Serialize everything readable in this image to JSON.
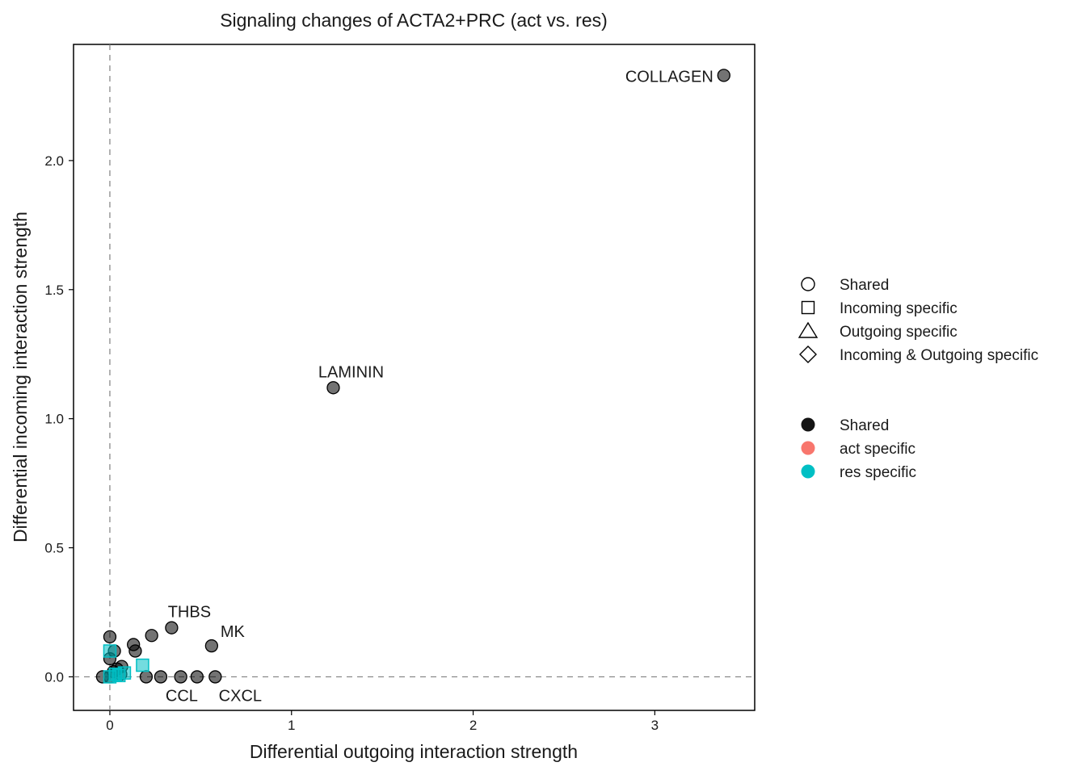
{
  "chart_data": {
    "type": "scatter",
    "title": "Signaling changes of ACTA2+PRC (act vs. res)",
    "xlabel": "Differential outgoing interaction strength",
    "ylabel": "Differential incoming interaction strength",
    "xlim": [
      -0.2,
      3.55
    ],
    "ylim": [
      -0.13,
      2.45
    ],
    "xticks": [
      0,
      1,
      2,
      3
    ],
    "yticks": [
      0.0,
      0.5,
      1.0,
      1.5,
      2.0
    ],
    "ytick_labels": [
      "0.0",
      "0.5",
      "1.0",
      "1.5",
      "2.0"
    ],
    "grid": false,
    "reference_lines": {
      "x": 0,
      "y": 0,
      "style": "dashed"
    },
    "colors": {
      "Shared": "#000000",
      "act specific": "#F8766D",
      "res specific": "#00BFC4"
    },
    "points": [
      {
        "x": 3.38,
        "y": 2.33,
        "shape": "circle",
        "group": "Shared",
        "label": "COLLAGEN"
      },
      {
        "x": 1.23,
        "y": 1.12,
        "shape": "circle",
        "group": "Shared",
        "label": "LAMININ"
      },
      {
        "x": 0.34,
        "y": 0.19,
        "shape": "circle",
        "group": "Shared",
        "label": "THBS"
      },
      {
        "x": 0.56,
        "y": 0.12,
        "shape": "circle",
        "group": "Shared",
        "label": "MK"
      },
      {
        "x": 0.2,
        "y": 0.0,
        "shape": "circle",
        "group": "Shared",
        "label": "CCL"
      },
      {
        "x": 0.58,
        "y": 0.0,
        "shape": "circle",
        "group": "Shared",
        "label": "CXCL"
      },
      {
        "x": 0.23,
        "y": 0.16,
        "shape": "circle",
        "group": "Shared",
        "label": ""
      },
      {
        "x": 0.0,
        "y": 0.155,
        "shape": "circle",
        "group": "Shared",
        "label": ""
      },
      {
        "x": 0.13,
        "y": 0.125,
        "shape": "circle",
        "group": "Shared",
        "label": ""
      },
      {
        "x": 0.14,
        "y": 0.1,
        "shape": "circle",
        "group": "Shared",
        "label": ""
      },
      {
        "x": 0.025,
        "y": 0.1,
        "shape": "circle",
        "group": "Shared",
        "label": ""
      },
      {
        "x": 0.0,
        "y": 0.07,
        "shape": "circle",
        "group": "Shared",
        "label": ""
      },
      {
        "x": 0.065,
        "y": 0.04,
        "shape": "circle",
        "group": "Shared",
        "label": ""
      },
      {
        "x": 0.04,
        "y": 0.03,
        "shape": "circle",
        "group": "Shared",
        "label": ""
      },
      {
        "x": 0.02,
        "y": 0.02,
        "shape": "circle",
        "group": "Shared",
        "label": ""
      },
      {
        "x": -0.04,
        "y": 0.0,
        "shape": "circle",
        "group": "Shared",
        "label": ""
      },
      {
        "x": 0.0,
        "y": 0.0,
        "shape": "circle",
        "group": "Shared",
        "label": ""
      },
      {
        "x": 0.06,
        "y": 0.01,
        "shape": "circle",
        "group": "Shared",
        "label": ""
      },
      {
        "x": 0.28,
        "y": 0.0,
        "shape": "circle",
        "group": "Shared",
        "label": ""
      },
      {
        "x": 0.39,
        "y": 0.0,
        "shape": "circle",
        "group": "Shared",
        "label": ""
      },
      {
        "x": 0.48,
        "y": 0.0,
        "shape": "circle",
        "group": "Shared",
        "label": ""
      },
      {
        "x": 0.0,
        "y": 0.1,
        "shape": "square",
        "group": "res specific",
        "label": ""
      },
      {
        "x": 0.18,
        "y": 0.045,
        "shape": "square",
        "group": "res specific",
        "label": ""
      },
      {
        "x": 0.08,
        "y": 0.015,
        "shape": "square",
        "group": "res specific",
        "label": ""
      },
      {
        "x": 0.03,
        "y": 0.01,
        "shape": "square",
        "group": "res specific",
        "label": ""
      },
      {
        "x": 0.0,
        "y": 0.0,
        "shape": "square",
        "group": "res specific",
        "label": ""
      },
      {
        "x": 0.05,
        "y": 0.005,
        "shape": "square",
        "group": "res specific",
        "label": ""
      }
    ],
    "legends": [
      {
        "items": [
          {
            "label": "Shared",
            "shape": "circle"
          },
          {
            "label": "Incoming specific",
            "shape": "square"
          },
          {
            "label": "Outgoing specific",
            "shape": "triangle"
          },
          {
            "label": "Incoming & Outgoing specific",
            "shape": "diamond"
          }
        ]
      },
      {
        "items": [
          {
            "label": "Shared",
            "color": "#000000"
          },
          {
            "label": "act specific",
            "color": "#F8766D"
          },
          {
            "label": "res specific",
            "color": "#00BFC4"
          }
        ]
      }
    ],
    "legend_position": "right"
  }
}
